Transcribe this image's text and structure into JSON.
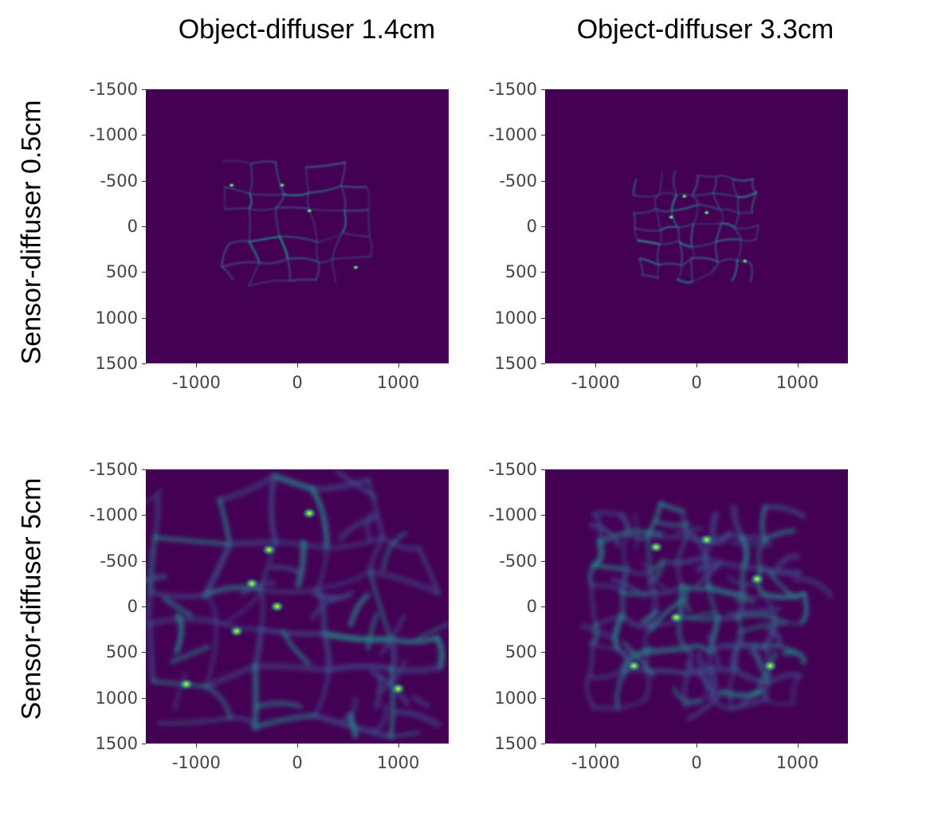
{
  "column_titles": [
    "Object-diffuser 1.4cm",
    "Object-diffuser 3.3cm"
  ],
  "row_titles": [
    "Sensor-diffuser 0.5cm",
    "Sensor-diffuser 5cm"
  ],
  "colors": {
    "background": "#ffffff",
    "colormap": [
      "#440154",
      "#3b528b",
      "#21918c",
      "#5ec962",
      "#fde725"
    ]
  },
  "chart_data": [
    {
      "type": "heatmap",
      "panel": "r0c0",
      "column": "Object-diffuser 1.4cm",
      "row": "Sensor-diffuser 0.5cm",
      "colormap": "viridis",
      "xlim": [
        -1500,
        1500
      ],
      "ylim": [
        -1500,
        1500
      ],
      "y_inverted": true,
      "xticks": [
        -1000,
        0,
        1000
      ],
      "yticks": [
        -1500,
        -1000,
        -500,
        0,
        500,
        1000,
        1500
      ],
      "xtick_labels": [
        "-1000",
        "0",
        "1000"
      ],
      "ytick_labels": [
        "-1500",
        "-1000",
        "-500",
        "0",
        "500",
        "1000",
        "1500"
      ],
      "pattern": "sharp caustic network",
      "extent_x": [
        -700,
        700
      ],
      "extent_y": [
        -650,
        650
      ],
      "grid_cells": 5,
      "blur": 1,
      "bright_spots": [
        [
          -150,
          -450
        ],
        [
          120,
          -170
        ],
        [
          -650,
          -450
        ],
        [
          580,
          450
        ]
      ]
    },
    {
      "type": "heatmap",
      "panel": "r0c1",
      "column": "Object-diffuser 3.3cm",
      "row": "Sensor-diffuser 0.5cm",
      "colormap": "viridis",
      "xlim": [
        -1500,
        1500
      ],
      "ylim": [
        -1500,
        1500
      ],
      "y_inverted": true,
      "xticks": [
        -1000,
        0,
        1000
      ],
      "yticks": [
        -1500,
        -1000,
        -500,
        0,
        500,
        1000,
        1500
      ],
      "xtick_labels": [
        "-1000",
        "0",
        "1000"
      ],
      "ytick_labels": [
        "-1500",
        "-1000",
        "-500",
        "0",
        "500",
        "1000",
        "1500"
      ],
      "pattern": "sharp caustic network",
      "extent_x": [
        -580,
        580
      ],
      "extent_y": [
        -560,
        560
      ],
      "grid_cells": 6,
      "blur": 1,
      "bright_spots": [
        [
          -120,
          -330
        ],
        [
          100,
          -150
        ],
        [
          -250,
          -100
        ],
        [
          480,
          380
        ]
      ]
    },
    {
      "type": "heatmap",
      "panel": "r1c0",
      "column": "Object-diffuser 1.4cm",
      "row": "Sensor-diffuser 5cm",
      "colormap": "viridis",
      "xlim": [
        -1500,
        1500
      ],
      "ylim": [
        -1500,
        1500
      ],
      "y_inverted": true,
      "xticks": [
        -1000,
        0,
        1000
      ],
      "yticks": [
        -1500,
        -1000,
        -500,
        0,
        500,
        1000,
        1500
      ],
      "xtick_labels": [
        "-1000",
        "0",
        "1000"
      ],
      "ytick_labels": [
        "-1500",
        "-1000",
        "-500",
        "0",
        "500",
        "1000",
        "1500"
      ],
      "pattern": "blurred caustic network",
      "extent_x": [
        -1350,
        1350
      ],
      "extent_y": [
        -1300,
        1300
      ],
      "grid_cells": 5,
      "blur": 3,
      "bright_spots": [
        [
          -280,
          -620
        ],
        [
          -450,
          -250
        ],
        [
          -600,
          270
        ],
        [
          1000,
          900
        ],
        [
          -1100,
          850
        ],
        [
          120,
          -1020
        ],
        [
          -200,
          0
        ]
      ]
    },
    {
      "type": "heatmap",
      "panel": "r1c1",
      "column": "Object-diffuser 3.3cm",
      "row": "Sensor-diffuser 5cm",
      "colormap": "viridis",
      "xlim": [
        -1500,
        1500
      ],
      "ylim": [
        -1500,
        1500
      ],
      "y_inverted": true,
      "xticks": [
        -1000,
        0,
        1000
      ],
      "yticks": [
        -1500,
        -1000,
        -500,
        0,
        500,
        1000,
        1500
      ],
      "xtick_labels": [
        "-1000",
        "0",
        "1000"
      ],
      "ytick_labels": [
        "-1500",
        "-1000",
        "-500",
        "0",
        "500",
        "1000",
        "1500"
      ],
      "pattern": "blurred caustic network",
      "extent_x": [
        -1000,
        1000
      ],
      "extent_y": [
        -1050,
        1050
      ],
      "grid_cells": 7,
      "blur": 3,
      "bright_spots": [
        [
          730,
          650
        ],
        [
          -620,
          650
        ],
        [
          100,
          -730
        ],
        [
          -400,
          -650
        ],
        [
          -200,
          120
        ],
        [
          600,
          -300
        ]
      ]
    }
  ]
}
